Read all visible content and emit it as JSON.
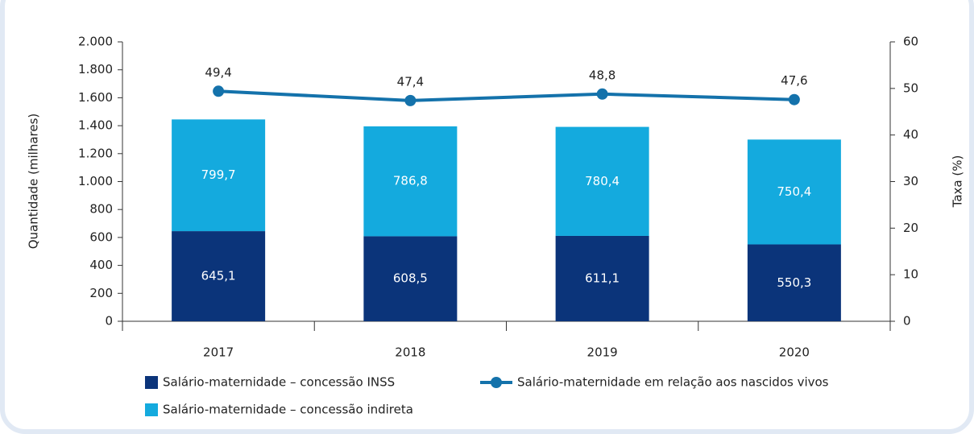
{
  "chart_data": {
    "type": "bar",
    "stacked": true,
    "categories": [
      "2017",
      "2018",
      "2019",
      "2020"
    ],
    "ylabel": "Quantidade (milhares)",
    "y2label": "Taxa (%)",
    "ylim": [
      0,
      2000
    ],
    "yticks": [
      0,
      200,
      400,
      600,
      800,
      {
        "value": 1000,
        "label": "1.000"
      },
      {
        "value": 1200,
        "label": "1.200"
      },
      {
        "value": 1400,
        "label": "1.400"
      },
      {
        "value": 1600,
        "label": "1.600"
      },
      {
        "value": 1800,
        "label": "1.800"
      },
      {
        "value": 2000,
        "label": "2.000"
      }
    ],
    "y2lim": [
      0,
      60
    ],
    "y2ticks": [
      0,
      10,
      20,
      30,
      40,
      50,
      60
    ],
    "series": [
      {
        "name": "Salário-maternidade – concessão INSS",
        "type": "bar",
        "color": "#0b347a",
        "values": [
          645.1,
          608.5,
          611.1,
          550.3
        ],
        "value_labels": [
          "645,1",
          "608,5",
          "611,1",
          "550,3"
        ]
      },
      {
        "name": "Salário-maternidade – concessão indireta",
        "type": "bar",
        "color": "#14aade",
        "values": [
          799.7,
          786.8,
          780.4,
          750.4
        ],
        "value_labels": [
          "799,7",
          "786,8",
          "780,4",
          "750,4"
        ]
      },
      {
        "name": "Salário-maternidade em relação aos nascidos vivos",
        "type": "line",
        "axis": "y2",
        "color": "#1472ab",
        "values": [
          49.4,
          47.4,
          48.8,
          47.6
        ],
        "value_labels": [
          "49,4",
          "47,4",
          "48,8",
          "47,6"
        ]
      }
    ]
  }
}
